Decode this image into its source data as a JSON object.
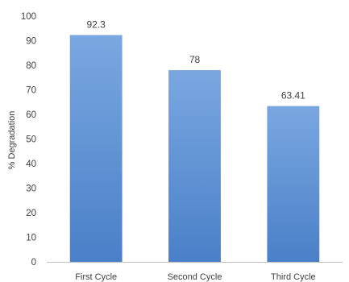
{
  "chart_data": {
    "type": "bar",
    "categories": [
      "First Cycle",
      "Second Cycle",
      "Third Cycle"
    ],
    "values": [
      92.3,
      78,
      63.41
    ],
    "data_labels": [
      "92.3",
      "78",
      "63.41"
    ],
    "title": "",
    "xlabel": "",
    "ylabel": "% Degradation",
    "ylim": [
      0,
      100
    ],
    "yticks": [
      0,
      10,
      20,
      30,
      40,
      50,
      60,
      70,
      80,
      90,
      100
    ],
    "grid": false,
    "legend": "none",
    "bar_color_top": "#7aa7e0",
    "bar_color_bottom": "#4a80c8"
  }
}
